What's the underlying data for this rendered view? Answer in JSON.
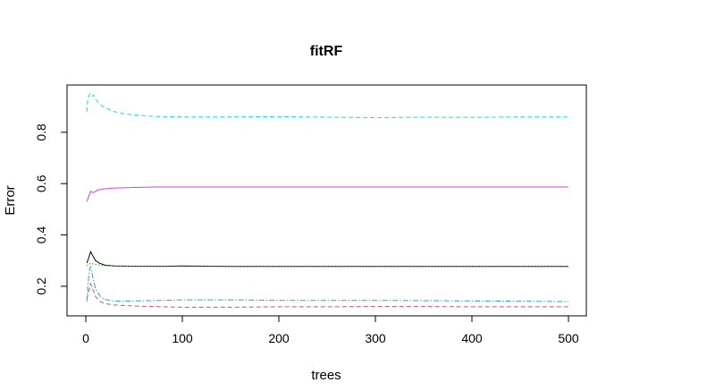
{
  "chart_data": {
    "type": "line",
    "title": "fitRF",
    "xlabel": "trees",
    "ylabel": "Error",
    "xlim": [
      0,
      500
    ],
    "ylim": [
      0.13,
      0.96
    ],
    "xticks": [
      0,
      100,
      200,
      300,
      400,
      500
    ],
    "xtick_labels": [
      "0",
      "100",
      "200",
      "300",
      "400",
      "500"
    ],
    "yticks": [
      0.2,
      0.4,
      0.6,
      0.8
    ],
    "ytick_labels": [
      "0.2",
      "0.4",
      "0.6",
      "0.8"
    ],
    "grid": false,
    "legend": "none",
    "series": [
      {
        "color": "#28d4e0",
        "dash": "dashed",
        "points": [
          [
            1,
            0.88
          ],
          [
            2,
            0.93
          ],
          [
            4,
            0.95
          ],
          [
            6,
            0.94
          ],
          [
            8,
            0.945
          ],
          [
            10,
            0.93
          ],
          [
            14,
            0.91
          ],
          [
            20,
            0.895
          ],
          [
            30,
            0.88
          ],
          [
            40,
            0.872
          ],
          [
            50,
            0.868
          ],
          [
            70,
            0.862
          ],
          [
            100,
            0.86
          ],
          [
            150,
            0.86
          ],
          [
            200,
            0.861
          ],
          [
            250,
            0.859
          ],
          [
            300,
            0.857
          ],
          [
            350,
            0.859
          ],
          [
            400,
            0.858
          ],
          [
            450,
            0.86
          ],
          [
            500,
            0.86
          ]
        ]
      },
      {
        "color": "#d940d9",
        "dash": "solid",
        "points": [
          [
            1,
            0.53
          ],
          [
            3,
            0.55
          ],
          [
            5,
            0.57
          ],
          [
            8,
            0.565
          ],
          [
            12,
            0.575
          ],
          [
            20,
            0.58
          ],
          [
            30,
            0.583
          ],
          [
            50,
            0.585
          ],
          [
            70,
            0.587
          ],
          [
            100,
            0.587
          ],
          [
            200,
            0.587
          ],
          [
            300,
            0.587
          ],
          [
            400,
            0.587
          ],
          [
            500,
            0.587
          ]
        ]
      },
      {
        "color": "#000000",
        "dash": "solid",
        "points": [
          [
            1,
            0.29
          ],
          [
            3,
            0.31
          ],
          [
            5,
            0.335
          ],
          [
            7,
            0.32
          ],
          [
            10,
            0.3
          ],
          [
            14,
            0.29
          ],
          [
            20,
            0.282
          ],
          [
            30,
            0.279
          ],
          [
            50,
            0.278
          ],
          [
            80,
            0.278
          ],
          [
            100,
            0.279
          ],
          [
            150,
            0.277
          ],
          [
            200,
            0.277
          ],
          [
            300,
            0.277
          ],
          [
            400,
            0.277
          ],
          [
            500,
            0.277
          ]
        ]
      },
      {
        "color": "#22b522",
        "dash": "dotted",
        "points": [
          [
            1,
            0.28
          ],
          [
            5,
            0.29
          ],
          [
            10,
            0.285
          ],
          [
            20,
            0.28
          ],
          [
            50,
            0.278
          ],
          [
            100,
            0.277
          ],
          [
            200,
            0.277
          ],
          [
            300,
            0.277
          ],
          [
            400,
            0.277
          ],
          [
            500,
            0.277
          ]
        ]
      },
      {
        "color": "#2aa0d8",
        "dash": "dashdot",
        "points": [
          [
            1,
            0.14
          ],
          [
            2,
            0.2
          ],
          [
            4,
            0.27
          ],
          [
            5,
            0.275
          ],
          [
            7,
            0.24
          ],
          [
            10,
            0.19
          ],
          [
            15,
            0.16
          ],
          [
            20,
            0.148
          ],
          [
            30,
            0.142
          ],
          [
            50,
            0.143
          ],
          [
            80,
            0.145
          ],
          [
            100,
            0.147
          ],
          [
            150,
            0.147
          ],
          [
            200,
            0.145
          ],
          [
            250,
            0.145
          ],
          [
            300,
            0.145
          ],
          [
            350,
            0.144
          ],
          [
            400,
            0.143
          ],
          [
            450,
            0.142
          ],
          [
            500,
            0.14
          ]
        ]
      },
      {
        "color": "#d04a8a",
        "dash": "dashed",
        "points": [
          [
            1,
            0.15
          ],
          [
            3,
            0.18
          ],
          [
            5,
            0.21
          ],
          [
            7,
            0.19
          ],
          [
            10,
            0.16
          ],
          [
            15,
            0.14
          ],
          [
            20,
            0.132
          ],
          [
            30,
            0.127
          ],
          [
            50,
            0.123
          ],
          [
            80,
            0.12
          ],
          [
            100,
            0.118
          ],
          [
            150,
            0.118
          ],
          [
            200,
            0.12
          ],
          [
            250,
            0.12
          ],
          [
            300,
            0.121
          ],
          [
            350,
            0.121
          ],
          [
            400,
            0.12
          ],
          [
            450,
            0.12
          ],
          [
            500,
            0.12
          ]
        ]
      }
    ]
  }
}
